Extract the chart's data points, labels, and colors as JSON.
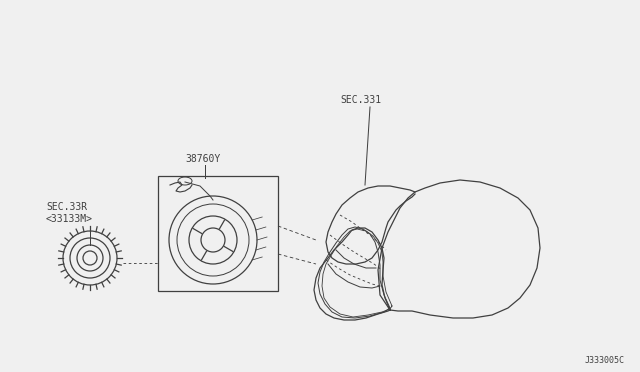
{
  "bg_color": "#f0f0f0",
  "line_color": "#404040",
  "label_38760Y": "38760Y",
  "label_sec331": "SEC.331",
  "label_sec332": "SEC.33R\n<33133M>",
  "label_diagram_id": "J333005C"
}
